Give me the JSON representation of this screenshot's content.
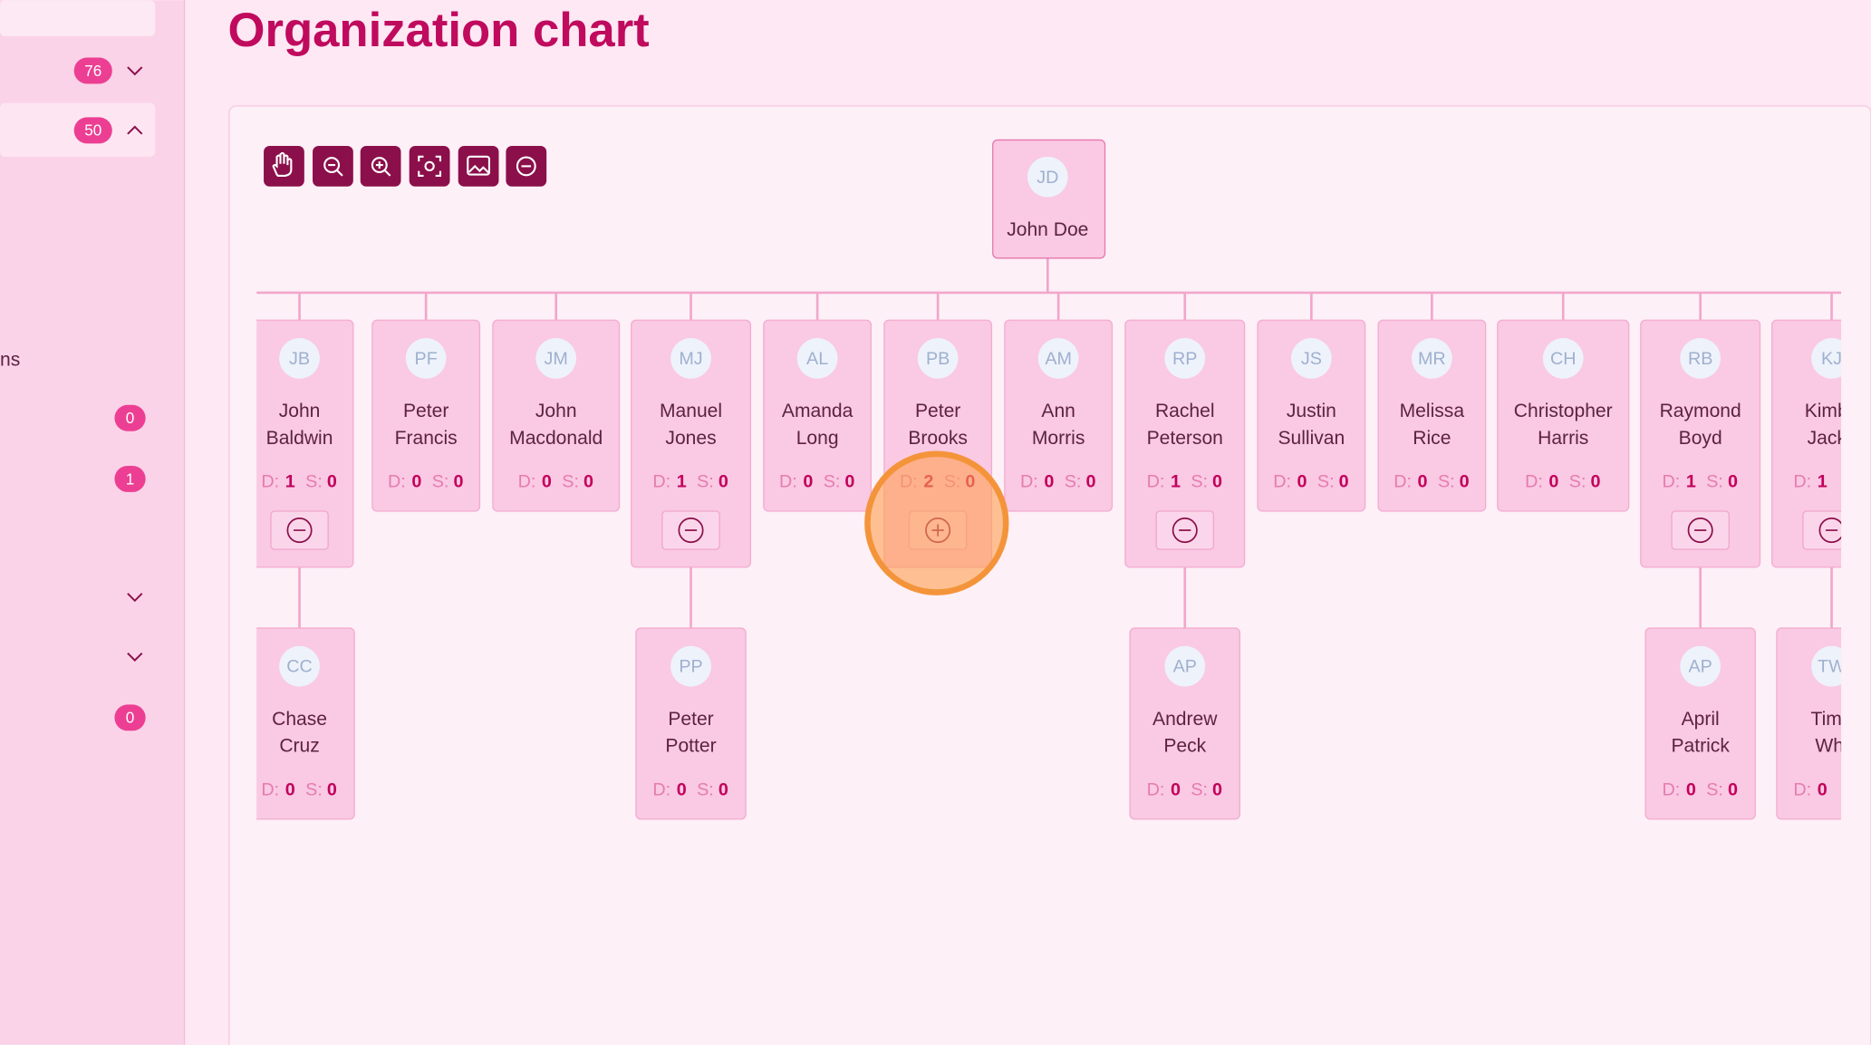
{
  "header": {
    "title": "Organization chart"
  },
  "labels": {
    "d": "D:",
    "s": "S:"
  },
  "sidebar": {
    "items": [
      {
        "badge": "76",
        "chevron": "down",
        "selected": false
      },
      {
        "badge": "50",
        "chevron": "up",
        "selected": true
      },
      {
        "text": "ns"
      },
      {
        "badge": "0"
      },
      {
        "badge": "1"
      },
      {
        "chevron": "down"
      },
      {
        "chevron": "down"
      },
      {
        "badge": "0"
      }
    ]
  },
  "chart": {
    "root": {
      "initials": "JD",
      "name": "John Doe"
    },
    "children": [
      {
        "initials": "JB",
        "name_lines": [
          "John",
          "Baldwin"
        ],
        "d": "1",
        "s": "0",
        "expander": "minus",
        "children": [
          {
            "initials": "CC",
            "name_lines": [
              "Chase",
              "Cruz"
            ],
            "d": "0",
            "s": "0"
          }
        ]
      },
      {
        "initials": "PF",
        "name_lines": [
          "Peter",
          "Francis"
        ],
        "d": "0",
        "s": "0"
      },
      {
        "initials": "JM",
        "name_lines": [
          "John",
          "Macdonald"
        ],
        "d": "0",
        "s": "0"
      },
      {
        "initials": "MJ",
        "name_lines": [
          "Manuel",
          "Jones"
        ],
        "d": "1",
        "s": "0",
        "expander": "minus",
        "children": [
          {
            "initials": "PP",
            "name_lines": [
              "Peter",
              "Potter"
            ],
            "d": "0",
            "s": "0"
          }
        ]
      },
      {
        "initials": "AL",
        "name_lines": [
          "Amanda",
          "Long"
        ],
        "d": "0",
        "s": "0"
      },
      {
        "initials": "PB",
        "name_lines": [
          "Peter",
          "Brooks"
        ],
        "d": "2",
        "s": "0",
        "expander": "plus"
      },
      {
        "initials": "AM",
        "name_lines": [
          "Ann",
          "Morris"
        ],
        "d": "0",
        "s": "0"
      },
      {
        "initials": "RP",
        "name_lines": [
          "Rachel",
          "Peterson"
        ],
        "d": "1",
        "s": "0",
        "expander": "minus",
        "children": [
          {
            "initials": "AP",
            "name_lines": [
              "Andrew",
              "Peck"
            ],
            "d": "0",
            "s": "0"
          }
        ]
      },
      {
        "initials": "JS",
        "name_lines": [
          "Justin",
          "Sullivan"
        ],
        "d": "0",
        "s": "0"
      },
      {
        "initials": "MR",
        "name_lines": [
          "Melissa",
          "Rice"
        ],
        "d": "0",
        "s": "0"
      },
      {
        "initials": "CH",
        "name_lines": [
          "Christopher",
          "Harris"
        ],
        "d": "0",
        "s": "0"
      },
      {
        "initials": "RB",
        "name_lines": [
          "Raymond",
          "Boyd"
        ],
        "d": "1",
        "s": "0",
        "expander": "minus",
        "children": [
          {
            "initials": "AP",
            "name_lines": [
              "April",
              "Patrick"
            ],
            "d": "0",
            "s": "0"
          }
        ]
      },
      {
        "initials": "KJ",
        "name_lines": [
          "Kimbe",
          "Jacks"
        ],
        "d": "1",
        "expander": "minus",
        "children": [
          {
            "initials": "TW",
            "name_lines": [
              "Timo",
              "Whi"
            ],
            "d": "0"
          }
        ]
      }
    ]
  }
}
